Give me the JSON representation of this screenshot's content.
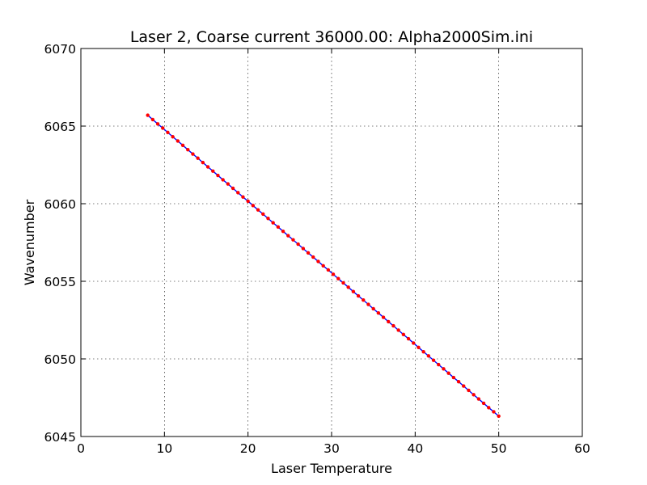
{
  "chart_data": {
    "type": "line",
    "title": "Laser 2, Coarse current 36000.00: Alpha2000Sim.ini",
    "xlabel": "Laser Temperature",
    "ylabel": "Wavenumber",
    "xlim": [
      0,
      60
    ],
    "ylim": [
      6045,
      6070
    ],
    "xticks": [
      "0",
      "10",
      "20",
      "30",
      "40",
      "50",
      "60"
    ],
    "yticks": [
      "6045",
      "6050",
      "6055",
      "6060",
      "6065",
      "6070"
    ],
    "grid": true,
    "series": [
      {
        "x": [
          8.0,
          8.6,
          9.2,
          9.8,
          10.4,
          11.0,
          11.6,
          12.2,
          12.8,
          13.4,
          14.0,
          14.6,
          15.2,
          15.8,
          16.4,
          17.0,
          17.6,
          18.2,
          18.8,
          19.4,
          20.0,
          20.6,
          21.2,
          21.8,
          22.4,
          23.0,
          23.6,
          24.2,
          24.8,
          25.4,
          26.0,
          26.6,
          27.2,
          27.8,
          28.4,
          29.0,
          29.6,
          30.2,
          30.8,
          31.4,
          32.0,
          32.6,
          33.2,
          33.8,
          34.4,
          35.0,
          35.6,
          36.2,
          36.8,
          37.4,
          38.0,
          38.6,
          39.2,
          39.8,
          40.4,
          41.0,
          41.6,
          42.2,
          42.8,
          43.4,
          44.0,
          44.6,
          45.2,
          45.8,
          46.4,
          47.0,
          47.6,
          48.2,
          48.8,
          49.4,
          50.0
        ],
        "y": [
          6065.7,
          6065.42,
          6065.14,
          6064.87,
          6064.59,
          6064.31,
          6064.04,
          6063.76,
          6063.48,
          6063.2,
          6062.93,
          6062.65,
          6062.37,
          6062.1,
          6061.82,
          6061.54,
          6061.27,
          6060.99,
          6060.71,
          6060.43,
          6060.16,
          6059.88,
          6059.6,
          6059.33,
          6059.05,
          6058.77,
          6058.5,
          6058.22,
          6057.94,
          6057.67,
          6057.39,
          6057.11,
          6056.83,
          6056.56,
          6056.28,
          6056.0,
          6055.73,
          6055.45,
          6055.17,
          6054.9,
          6054.62,
          6054.34,
          6054.06,
          6053.79,
          6053.51,
          6053.23,
          6052.96,
          6052.68,
          6052.4,
          6052.13,
          6051.85,
          6051.57,
          6051.3,
          6051.02,
          6050.74,
          6050.46,
          6050.19,
          6049.91,
          6049.63,
          6049.36,
          6049.08,
          6048.8,
          6048.53,
          6048.25,
          6047.97,
          6047.69,
          6047.42,
          6047.14,
          6046.86,
          6046.59,
          6046.31
        ],
        "line_color": "#0000ff",
        "marker_color": "#ff0000"
      }
    ]
  }
}
